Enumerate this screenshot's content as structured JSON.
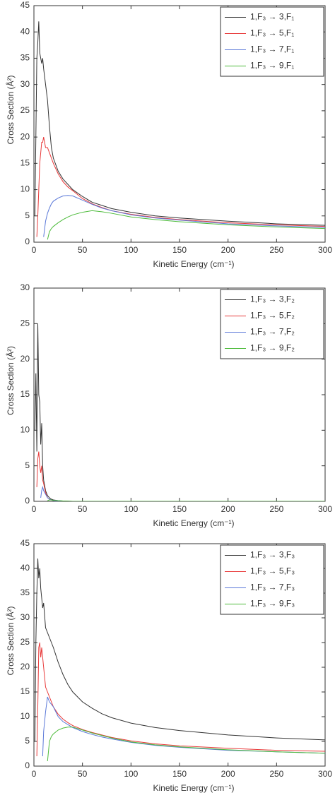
{
  "chart_data": [
    {
      "type": "line",
      "x_label": "Kinetic Energy (cm⁻¹)",
      "y_label": "Cross Section (Å²)",
      "legend": "upper right",
      "x": [
        1,
        2,
        3,
        4,
        5,
        6,
        7,
        8,
        9,
        10,
        12,
        14,
        16,
        18,
        20,
        25,
        30,
        35,
        40,
        50,
        60,
        70,
        80,
        100,
        125,
        150,
        200,
        250,
        300
      ],
      "xlim": [
        0,
        300
      ],
      "xticks": [
        0,
        50,
        100,
        150,
        200,
        250,
        300
      ],
      "ylim": [
        0,
        45
      ],
      "yticks": [
        0,
        5,
        10,
        15,
        20,
        25,
        30,
        35,
        40,
        45
      ],
      "series": [
        {
          "name": "1,F₃ → 3,F₁",
          "color": "#333333",
          "values": [
            5,
            20,
            35,
            38,
            42,
            36,
            35,
            34,
            35,
            33,
            30,
            27,
            22,
            18,
            16,
            13.5,
            12,
            11,
            10,
            8.7,
            7.6,
            7,
            6.4,
            5.7,
            5,
            4.6,
            4,
            3.5,
            3.2
          ]
        },
        {
          "name": "1,F₃ → 5,F₁",
          "color": "#e83a3a",
          "values": [
            null,
            null,
            1,
            5,
            10,
            15,
            17,
            19,
            19,
            20,
            18,
            18,
            17,
            16,
            15,
            13,
            11.5,
            10.5,
            9.8,
            8.3,
            7.3,
            6.6,
            6,
            5.3,
            4.7,
            4.3,
            3.7,
            3.3,
            3.0
          ]
        },
        {
          "name": "1,F₃ → 7,F₁",
          "color": "#5a78d8",
          "values": [
            null,
            null,
            null,
            null,
            null,
            null,
            null,
            null,
            null,
            1,
            4,
            5.5,
            6.5,
            7.3,
            7.8,
            8.4,
            8.8,
            8.9,
            8.8,
            8,
            7.2,
            6.5,
            6,
            5.2,
            4.6,
            4.2,
            3.5,
            3.1,
            2.8
          ]
        },
        {
          "name": "1,F₃ → 9,F₁",
          "color": "#4cbb3a",
          "values": [
            null,
            null,
            null,
            null,
            null,
            null,
            null,
            null,
            null,
            null,
            null,
            0.5,
            2,
            2.6,
            3,
            3.7,
            4.3,
            4.8,
            5.2,
            5.7,
            6,
            5.8,
            5.5,
            4.8,
            4.3,
            3.9,
            3.3,
            2.9,
            2.6
          ]
        }
      ]
    },
    {
      "type": "line",
      "x_label": "Kinetic Energy (cm⁻¹)",
      "y_label": "Cross Section (Å²)",
      "legend": "upper right",
      "x": [
        1,
        2,
        3,
        4,
        5,
        6,
        7,
        8,
        9,
        10,
        12,
        14,
        16,
        18,
        20,
        25,
        30,
        35,
        40,
        50,
        60,
        70,
        80,
        100,
        125,
        150,
        200,
        250,
        300
      ],
      "xlim": [
        0,
        300
      ],
      "xticks": [
        0,
        50,
        100,
        150,
        200,
        250,
        300
      ],
      "ylim": [
        0,
        30
      ],
      "yticks": [
        0,
        5,
        10,
        15,
        20,
        25,
        30
      ],
      "series": [
        {
          "name": "1,F₃ → 3,F₂",
          "color": "#333333",
          "values": [
            10,
            18,
            7,
            25,
            15,
            14,
            8,
            11,
            5,
            3,
            1.5,
            0.8,
            0.5,
            0.3,
            0.2,
            0.1,
            0.05,
            0.02,
            0,
            0,
            0,
            0,
            0,
            0,
            0,
            0,
            0,
            0,
            0
          ]
        },
        {
          "name": "1,F₃ → 5,F₂",
          "color": "#e83a3a",
          "values": [
            null,
            null,
            2,
            6,
            7,
            5,
            4,
            5,
            3,
            2.5,
            1.2,
            0.5,
            0.3,
            0.2,
            0.1,
            0.05,
            0,
            0,
            0,
            0,
            0,
            0,
            0,
            0,
            0,
            0,
            0,
            0,
            0
          ]
        },
        {
          "name": "1,F₃ → 7,F₂",
          "color": "#5a78d8",
          "values": [
            null,
            null,
            null,
            null,
            null,
            null,
            0.5,
            1.5,
            2,
            1.5,
            1,
            0.5,
            0.3,
            0.2,
            0.1,
            0,
            0,
            0,
            0,
            0,
            0,
            0,
            0,
            0,
            0,
            0,
            0,
            0,
            0
          ]
        },
        {
          "name": "1,F₃ → 9,F₂",
          "color": "#4cbb3a",
          "values": [
            null,
            null,
            null,
            null,
            null,
            null,
            null,
            null,
            null,
            null,
            null,
            0.1,
            0.2,
            0.2,
            0.15,
            0.1,
            0.05,
            0.02,
            0,
            0,
            0,
            0,
            0,
            0,
            0,
            0,
            0,
            0,
            0
          ]
        }
      ]
    },
    {
      "type": "line",
      "x_label": "Kinetic Energy (cm⁻¹)",
      "y_label": "Cross Section (Å²)",
      "legend": "upper right",
      "x": [
        1,
        2,
        3,
        4,
        5,
        6,
        7,
        8,
        9,
        10,
        12,
        14,
        16,
        18,
        20,
        25,
        30,
        35,
        40,
        50,
        60,
        70,
        80,
        100,
        125,
        150,
        200,
        250,
        300
      ],
      "xlim": [
        0,
        300
      ],
      "xticks": [
        0,
        50,
        100,
        150,
        200,
        250,
        300
      ],
      "ylim": [
        0,
        45
      ],
      "yticks": [
        0,
        5,
        10,
        15,
        20,
        25,
        30,
        35,
        40,
        45
      ],
      "series": [
        {
          "name": "1,F₃ → 3,F₃",
          "color": "#333333",
          "values": [
            5,
            25,
            35,
            42,
            38,
            40,
            36,
            34,
            32,
            33,
            28,
            27,
            26,
            25,
            24,
            21,
            18.5,
            16.5,
            15,
            13,
            11.7,
            10.6,
            9.8,
            8.7,
            7.8,
            7.2,
            6.3,
            5.7,
            5.3
          ]
        },
        {
          "name": "1,F₃ → 5,F₃",
          "color": "#e83a3a",
          "values": [
            null,
            null,
            2,
            12,
            24,
            25,
            22,
            24,
            22,
            20,
            16,
            15,
            14,
            13,
            12,
            10.5,
            9.5,
            8.8,
            8.2,
            7.4,
            6.8,
            6.3,
            5.8,
            5.1,
            4.5,
            4.1,
            3.6,
            3.2,
            3.0
          ]
        },
        {
          "name": "1,F₃ → 7,F₃",
          "color": "#5a78d8",
          "values": [
            null,
            null,
            null,
            null,
            null,
            null,
            null,
            null,
            2,
            7,
            11,
            14,
            13,
            12.5,
            12,
            10,
            9,
            8.4,
            7.8,
            7,
            6.4,
            5.9,
            5.5,
            4.8,
            4.2,
            3.8,
            3.2,
            2.9,
            2.6
          ]
        },
        {
          "name": "1,F₃ → 9,F₃",
          "color": "#4cbb3a",
          "values": [
            null,
            null,
            null,
            null,
            null,
            null,
            null,
            null,
            null,
            null,
            null,
            1,
            5,
            6,
            6.5,
            7.3,
            7.7,
            7.9,
            7.9,
            7.3,
            6.7,
            6.2,
            5.7,
            4.9,
            4.3,
            3.9,
            3.3,
            2.9,
            2.6
          ]
        }
      ]
    }
  ]
}
